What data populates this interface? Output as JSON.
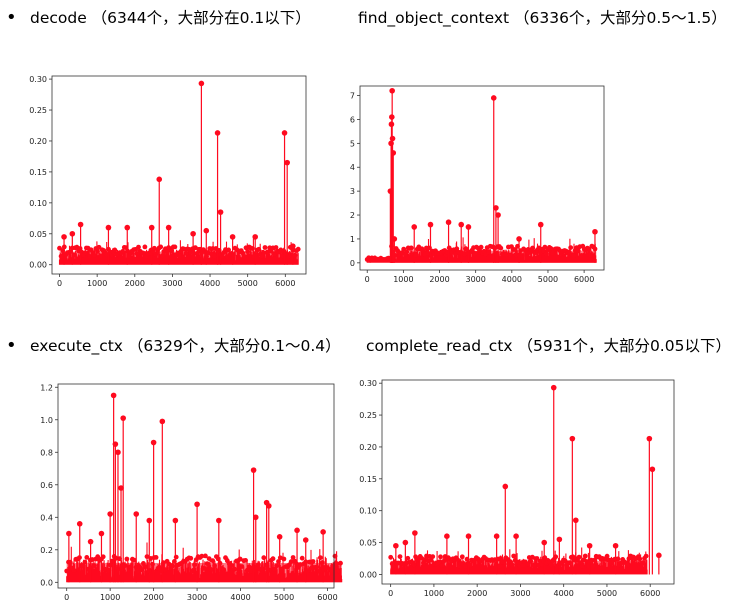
{
  "headings": [
    {
      "text": "decode （6344个，大部分在0.1以下）",
      "bullet": "•"
    },
    {
      "text": "find_object_context （6336个，大部分0.5～1.5）",
      "bullet": ""
    },
    {
      "text": "execute_ctx （6329个，大部分0.1～0.4）",
      "bullet": "•"
    },
    {
      "text": "complete_read_ctx （5931个，大部分0.05以下）",
      "bullet": ""
    }
  ],
  "colors": {
    "series": "#ff0a1f",
    "axis": "#333333",
    "background": "#ffffff"
  },
  "chart_data": [
    {
      "type": "scatter",
      "style": "stem",
      "title": "",
      "xlabel": "",
      "ylabel": "",
      "xlim": [
        -200,
        6550
      ],
      "ylim": [
        -0.015,
        0.305
      ],
      "xticks": [
        0,
        1000,
        2000,
        3000,
        4000,
        5000,
        6000
      ],
      "yticks": [
        0.0,
        0.05,
        0.1,
        0.15,
        0.2,
        0.25,
        0.3
      ],
      "ytick_labels": [
        "0.00",
        "0.05",
        "0.10",
        "0.15",
        "0.20",
        "0.25",
        "0.30"
      ],
      "n_points": 6344,
      "baseline": [
        0.005,
        0.025
      ],
      "spikes": [
        [
          120,
          0.045
        ],
        [
          340,
          0.05
        ],
        [
          560,
          0.065
        ],
        [
          1300,
          0.06
        ],
        [
          1800,
          0.06
        ],
        [
          2450,
          0.06
        ],
        [
          2650,
          0.138
        ],
        [
          2900,
          0.06
        ],
        [
          3550,
          0.05
        ],
        [
          3770,
          0.293
        ],
        [
          3900,
          0.055
        ],
        [
          4200,
          0.213
        ],
        [
          4280,
          0.085
        ],
        [
          4600,
          0.045
        ],
        [
          5200,
          0.045
        ],
        [
          5980,
          0.213
        ],
        [
          6050,
          0.165
        ],
        [
          6200,
          0.03
        ]
      ],
      "grid": false
    },
    {
      "type": "scatter",
      "style": "stem",
      "title": "",
      "xlabel": "",
      "ylabel": "",
      "xlim": [
        -200,
        6550
      ],
      "ylim": [
        -0.3,
        7.4
      ],
      "xticks": [
        0,
        1000,
        2000,
        3000,
        4000,
        5000,
        6000
      ],
      "yticks": [
        0,
        1,
        2,
        3,
        4,
        5,
        6,
        7
      ],
      "ytick_labels": [
        "0",
        "1",
        "2",
        "3",
        "4",
        "5",
        "6",
        "7"
      ],
      "n_points": 6336,
      "baseline": [
        0.1,
        0.6
      ],
      "baseline_low_until": 650,
      "spikes": [
        [
          640,
          3.0
        ],
        [
          660,
          5.0
        ],
        [
          670,
          5.8
        ],
        [
          680,
          6.1
        ],
        [
          690,
          7.2
        ],
        [
          700,
          5.2
        ],
        [
          720,
          4.6
        ],
        [
          750,
          1.0
        ],
        [
          1300,
          1.5
        ],
        [
          1750,
          1.6
        ],
        [
          2250,
          1.7
        ],
        [
          2600,
          1.6
        ],
        [
          2800,
          1.5
        ],
        [
          3500,
          6.9
        ],
        [
          3560,
          2.3
        ],
        [
          3620,
          2.0
        ],
        [
          4200,
          1.0
        ],
        [
          4800,
          1.6
        ],
        [
          6300,
          1.3
        ]
      ],
      "grid": false
    },
    {
      "type": "scatter",
      "style": "stem",
      "title": "",
      "xlabel": "",
      "ylabel": "",
      "xlim": [
        -200,
        6150
      ],
      "ylim": [
        -0.035,
        1.22
      ],
      "xticks": [
        0,
        1000,
        2000,
        3000,
        4000,
        5000,
        6000
      ],
      "yticks": [
        0.0,
        0.2,
        0.4,
        0.6,
        0.8,
        1.0,
        1.2
      ],
      "ytick_labels": [
        "0.0",
        "0.2",
        "0.4",
        "0.6",
        "0.8",
        "1.0",
        "1.2"
      ],
      "n_points": 6329,
      "baseline": [
        0.02,
        0.14
      ],
      "spikes": [
        [
          50,
          0.3
        ],
        [
          300,
          0.36
        ],
        [
          550,
          0.25
        ],
        [
          800,
          0.3
        ],
        [
          1000,
          0.42
        ],
        [
          1080,
          1.15
        ],
        [
          1120,
          0.85
        ],
        [
          1180,
          0.8
        ],
        [
          1250,
          0.58
        ],
        [
          1300,
          1.01
        ],
        [
          1600,
          0.42
        ],
        [
          1900,
          0.38
        ],
        [
          2000,
          0.86
        ],
        [
          2200,
          0.99
        ],
        [
          2500,
          0.38
        ],
        [
          3000,
          0.48
        ],
        [
          3500,
          0.38
        ],
        [
          4300,
          0.69
        ],
        [
          4350,
          0.4
        ],
        [
          4600,
          0.49
        ],
        [
          4650,
          0.47
        ],
        [
          4900,
          0.28
        ],
        [
          5300,
          0.32
        ],
        [
          5500,
          0.26
        ],
        [
          5900,
          0.31
        ]
      ],
      "grid": false
    },
    {
      "type": "scatter",
      "style": "stem",
      "title": "",
      "xlabel": "",
      "ylabel": "",
      "xlim": [
        -200,
        6550
      ],
      "ylim": [
        -0.015,
        0.305
      ],
      "xticks": [
        0,
        1000,
        2000,
        3000,
        4000,
        5000,
        6000
      ],
      "yticks": [
        0.0,
        0.05,
        0.1,
        0.15,
        0.2,
        0.25,
        0.3
      ],
      "ytick_labels": [
        "0.00",
        "0.05",
        "0.10",
        "0.15",
        "0.20",
        "0.25",
        "0.30"
      ],
      "n_points": 5931,
      "baseline": [
        0.005,
        0.025
      ],
      "spikes": [
        [
          120,
          0.045
        ],
        [
          340,
          0.05
        ],
        [
          560,
          0.065
        ],
        [
          1300,
          0.06
        ],
        [
          1800,
          0.06
        ],
        [
          2450,
          0.06
        ],
        [
          2650,
          0.138
        ],
        [
          2900,
          0.06
        ],
        [
          3550,
          0.05
        ],
        [
          3770,
          0.293
        ],
        [
          3900,
          0.055
        ],
        [
          4200,
          0.213
        ],
        [
          4280,
          0.085
        ],
        [
          4600,
          0.045
        ],
        [
          5200,
          0.045
        ],
        [
          5980,
          0.213
        ],
        [
          6050,
          0.165
        ],
        [
          6200,
          0.03
        ]
      ],
      "grid": false
    }
  ]
}
